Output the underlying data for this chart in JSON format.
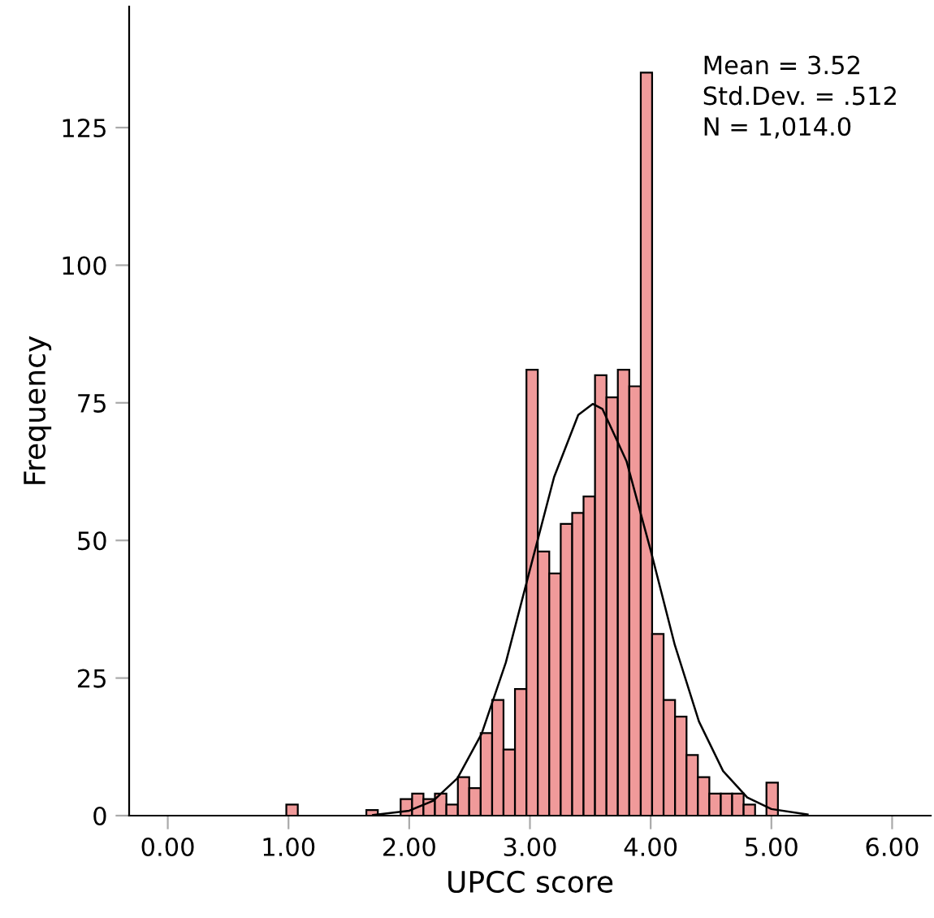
{
  "chart_data": {
    "type": "histogram",
    "xlabel": "UPCC score",
    "ylabel": "Frequency",
    "bins": [
      0.982,
      1.077,
      1.171,
      1.266,
      1.361,
      1.456,
      1.55,
      1.645,
      1.74,
      1.834,
      1.929,
      2.024,
      2.118,
      2.213,
      2.308,
      2.403,
      2.497,
      2.592,
      2.687,
      2.781,
      2.876,
      2.971,
      3.065,
      3.16,
      3.255,
      3.35,
      3.444,
      3.539,
      3.634,
      3.728,
      3.823,
      3.918,
      4.012,
      4.107,
      4.202,
      4.297,
      4.391,
      4.486,
      4.581,
      4.675,
      4.77,
      4.865,
      4.959,
      5.054
    ],
    "values": [
      2,
      0,
      0,
      0,
      0,
      0,
      0,
      1,
      0,
      0,
      3,
      4,
      3,
      4,
      2,
      7,
      5,
      15,
      21,
      12,
      23,
      81,
      48,
      44,
      53,
      55,
      58,
      80,
      76,
      81,
      78,
      135,
      33,
      21,
      18,
      11,
      7,
      4,
      4,
      4,
      2,
      0,
      6
    ],
    "color": "#f09a9a",
    "series": [
      {
        "type": "line",
        "color": "#000000",
        "x": [
          1.7,
          2.0,
          2.2,
          2.4,
          2.6,
          2.8,
          3.0,
          3.2,
          3.4,
          3.52,
          3.6,
          3.8,
          4.0,
          4.2,
          4.4,
          4.6,
          4.8,
          5.0,
          5.3
        ],
        "values": [
          0.1,
          0.9,
          2.7,
          6.8,
          14.9,
          27.8,
          44.7,
          61.5,
          72.8,
          74.8,
          73.9,
          64.4,
          48.2,
          31.0,
          17.1,
          8.1,
          3.3,
          1.2,
          0.2
        ]
      }
    ],
    "xlim": [
      -0.32,
      6.32
    ],
    "ylim": [
      0,
      147
    ],
    "xticks": [
      {
        "value": 0,
        "label": "0.00"
      },
      {
        "value": 1,
        "label": "1.00"
      },
      {
        "value": 2,
        "label": "2.00"
      },
      {
        "value": 3,
        "label": "3.00"
      },
      {
        "value": 4,
        "label": "4.00"
      },
      {
        "value": 5,
        "label": "5.00"
      },
      {
        "value": 6,
        "label": "6.00"
      }
    ],
    "yticks": [
      0,
      25,
      50,
      75,
      100,
      125
    ],
    "annotations": [
      "Mean = 3.52",
      "Std.Dev. = .512",
      "N = 1,014.0"
    ],
    "grid": false,
    "legend": false
  }
}
